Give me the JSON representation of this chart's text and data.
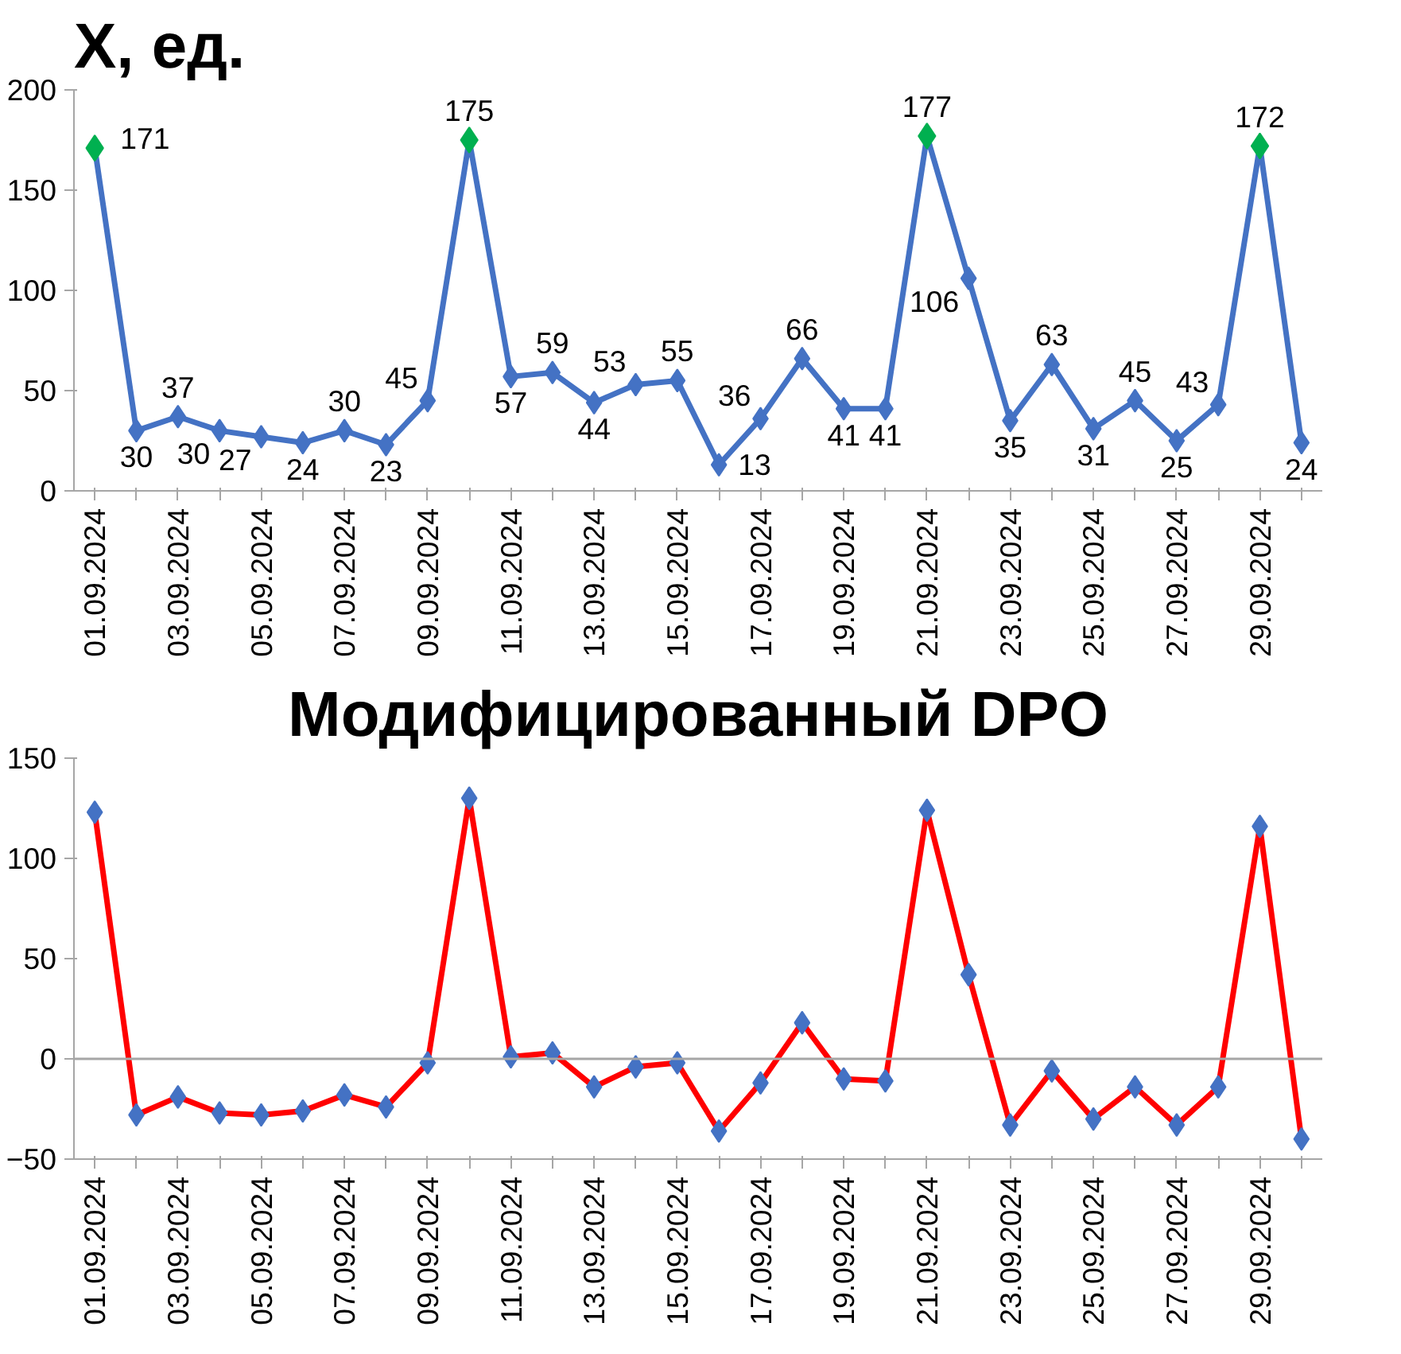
{
  "chart_data": [
    {
      "type": "line",
      "title": "X, ед.",
      "categories": [
        "01.09.2024",
        null,
        "03.09.2024",
        null,
        "05.09.2024",
        null,
        "07.09.2024",
        null,
        "09.09.2024",
        null,
        "11.09.2024",
        null,
        "13.09.2024",
        null,
        "15.09.2024",
        null,
        "17.09.2024",
        null,
        "19.09.2024",
        null,
        "21.09.2024",
        null,
        "23.09.2024",
        null,
        "25.09.2024",
        null,
        "27.09.2024",
        null,
        "29.09.2024",
        null
      ],
      "ylim": [
        0,
        200
      ],
      "yticks": [
        0,
        50,
        100,
        150,
        200
      ],
      "grid": false,
      "series": [
        {
          "type": "line",
          "color": "#4472c4",
          "marker": "diamond",
          "values": [
            171,
            30,
            37,
            30,
            27,
            24,
            30,
            23,
            45,
            175,
            57,
            59,
            44,
            53,
            55,
            13,
            36,
            66,
            41,
            41,
            177,
            106,
            35,
            63,
            31,
            45,
            25,
            43,
            172,
            24
          ],
          "value_labels": [
            "171",
            "30",
            "37",
            "30",
            "27",
            "24",
            "30",
            "23",
            "45",
            "175",
            "57",
            "59",
            "44",
            "53",
            "55",
            "13",
            "36",
            "66",
            "41",
            "41",
            "177",
            "106",
            "35",
            "63",
            "31",
            "45",
            "25",
            "43",
            "172",
            "24"
          ]
        },
        {
          "type": "scatter",
          "color": "#00b050",
          "marker": "diamond",
          "values": [
            171,
            null,
            null,
            null,
            null,
            null,
            null,
            null,
            null,
            175,
            null,
            null,
            null,
            null,
            null,
            null,
            null,
            null,
            null,
            null,
            177,
            null,
            null,
            null,
            null,
            null,
            null,
            null,
            172,
            null
          ]
        }
      ]
    },
    {
      "type": "line",
      "title": "Модифицированный DPO",
      "categories": [
        "01.09.2024",
        null,
        "03.09.2024",
        null,
        "05.09.2024",
        null,
        "07.09.2024",
        null,
        "09.09.2024",
        null,
        "11.09.2024",
        null,
        "13.09.2024",
        null,
        "15.09.2024",
        null,
        "17.09.2024",
        null,
        "19.09.2024",
        null,
        "21.09.2024",
        null,
        "23.09.2024",
        null,
        "25.09.2024",
        null,
        "27.09.2024",
        null,
        "29.09.2024",
        null
      ],
      "ylim": [
        -50,
        150
      ],
      "yticks": [
        -50,
        0,
        50,
        100,
        150
      ],
      "grid": false,
      "ref_lines": [
        {
          "axis": "y",
          "value": 0,
          "color": "#a6a6a6"
        }
      ],
      "series": [
        {
          "type": "line",
          "color": "#ff0000",
          "marker": "none",
          "values": [
            123,
            -28,
            -19,
            -27,
            -28,
            -26,
            -18,
            -24,
            -2,
            130,
            1,
            3,
            -14,
            -4,
            -2,
            -36,
            -12,
            18,
            -10,
            -11,
            124,
            42,
            -33,
            -6,
            -30,
            -14,
            -33,
            -14,
            116,
            -40
          ]
        },
        {
          "type": "scatter",
          "color": "#4472c4",
          "marker": "diamond",
          "values": [
            123,
            -28,
            -19,
            -27,
            -28,
            -26,
            -18,
            -24,
            -2,
            130,
            1,
            3,
            -14,
            -4,
            -2,
            -36,
            -12,
            18,
            -10,
            -11,
            124,
            42,
            -33,
            -6,
            -30,
            -14,
            -33,
            -14,
            116,
            -40
          ]
        }
      ]
    }
  ]
}
